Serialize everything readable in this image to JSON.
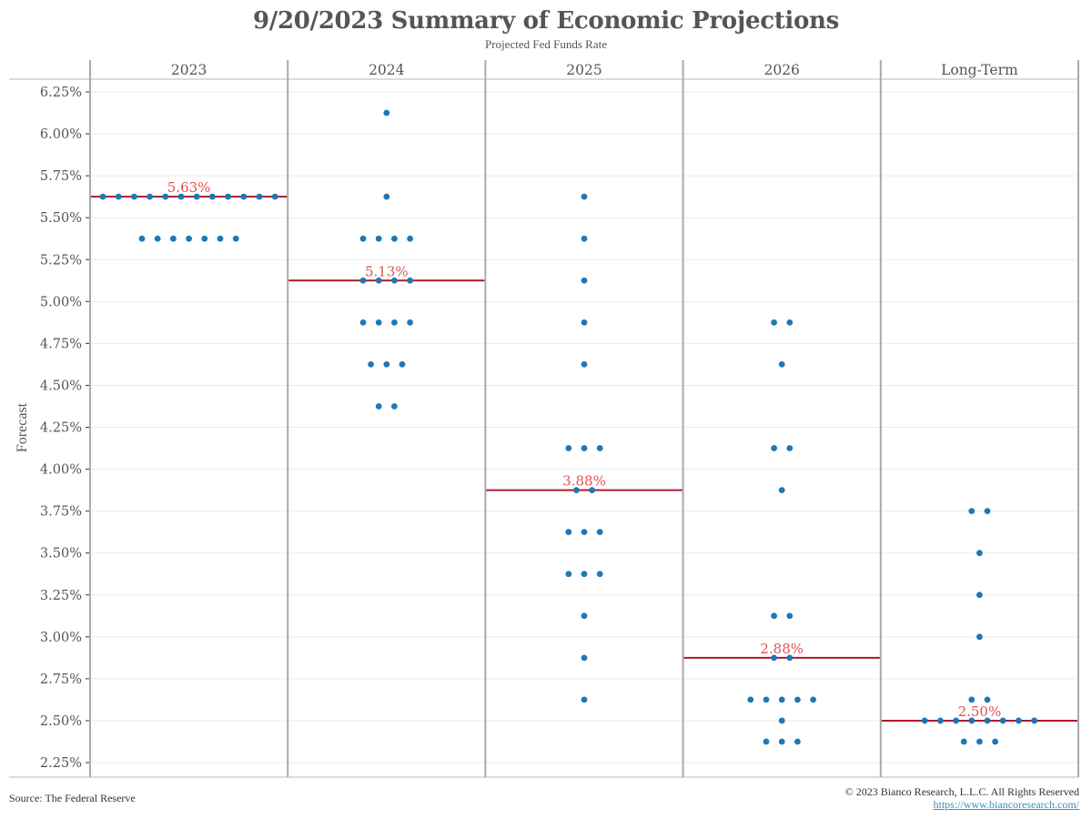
{
  "chart_data": {
    "type": "scatter",
    "subtype": "dot-plot",
    "title": "9/20/2023 Summary of Economic Projections",
    "subtitle": "Projected Fed Funds Rate",
    "ylabel": "Forecast",
    "xlabel": "",
    "ylim": [
      2.25,
      6.25
    ],
    "yticks": [
      "6.25%",
      "6.00%",
      "5.75%",
      "5.50%",
      "5.25%",
      "5.00%",
      "4.75%",
      "4.50%",
      "4.25%",
      "4.00%",
      "3.75%",
      "3.50%",
      "3.25%",
      "3.00%",
      "2.75%",
      "2.50%",
      "2.25%"
    ],
    "ytick_values": [
      6.25,
      6.0,
      5.75,
      5.5,
      5.25,
      5.0,
      4.75,
      4.5,
      4.25,
      4.0,
      3.75,
      3.5,
      3.25,
      3.0,
      2.75,
      2.5,
      2.25
    ],
    "grid": true,
    "categories": [
      "2023",
      "2024",
      "2025",
      "2026",
      "Long-Term"
    ],
    "colors": {
      "dot": "#1f77b4",
      "median_line": "#b0172b",
      "median_label": "#e05252",
      "divider": "#aaaaaa",
      "grid": "#ebebeb"
    },
    "series": [
      {
        "name": "2023",
        "median": 5.625,
        "median_label": "5.63%",
        "points": [
          {
            "value": 5.625,
            "count": 12
          },
          {
            "value": 5.375,
            "count": 7
          }
        ]
      },
      {
        "name": "2024",
        "median": 5.125,
        "median_label": "5.13%",
        "points": [
          {
            "value": 6.125,
            "count": 1
          },
          {
            "value": 5.625,
            "count": 1
          },
          {
            "value": 5.375,
            "count": 4
          },
          {
            "value": 5.125,
            "count": 4
          },
          {
            "value": 4.875,
            "count": 4
          },
          {
            "value": 4.625,
            "count": 3
          },
          {
            "value": 4.375,
            "count": 2
          }
        ]
      },
      {
        "name": "2025",
        "median": 3.875,
        "median_label": "3.88%",
        "points": [
          {
            "value": 5.625,
            "count": 1
          },
          {
            "value": 5.375,
            "count": 1
          },
          {
            "value": 5.125,
            "count": 1
          },
          {
            "value": 4.875,
            "count": 1
          },
          {
            "value": 4.625,
            "count": 1
          },
          {
            "value": 4.125,
            "count": 3
          },
          {
            "value": 3.875,
            "count": 2
          },
          {
            "value": 3.625,
            "count": 3
          },
          {
            "value": 3.375,
            "count": 3
          },
          {
            "value": 3.125,
            "count": 1
          },
          {
            "value": 2.875,
            "count": 1
          },
          {
            "value": 2.625,
            "count": 1
          }
        ]
      },
      {
        "name": "2026",
        "median": 2.875,
        "median_label": "2.88%",
        "points": [
          {
            "value": 4.875,
            "count": 2
          },
          {
            "value": 4.625,
            "count": 1
          },
          {
            "value": 4.125,
            "count": 2
          },
          {
            "value": 3.875,
            "count": 1
          },
          {
            "value": 3.125,
            "count": 2
          },
          {
            "value": 2.875,
            "count": 2
          },
          {
            "value": 2.625,
            "count": 5
          },
          {
            "value": 2.5,
            "count": 1
          },
          {
            "value": 2.375,
            "count": 3
          }
        ]
      },
      {
        "name": "Long-Term",
        "median": 2.5,
        "median_label": "2.50%",
        "points": [
          {
            "value": 3.75,
            "count": 2
          },
          {
            "value": 3.5,
            "count": 1
          },
          {
            "value": 3.25,
            "count": 1
          },
          {
            "value": 3.0,
            "count": 1
          },
          {
            "value": 2.625,
            "count": 2
          },
          {
            "value": 2.5,
            "count": 8
          },
          {
            "value": 2.375,
            "count": 3
          }
        ]
      }
    ]
  },
  "footer": {
    "source": "Source: The Federal Reserve",
    "copyright": "© 2023 Bianco Research, L.L.C. All Rights Reserved",
    "link": "https://www.biancoresearch.com/"
  }
}
